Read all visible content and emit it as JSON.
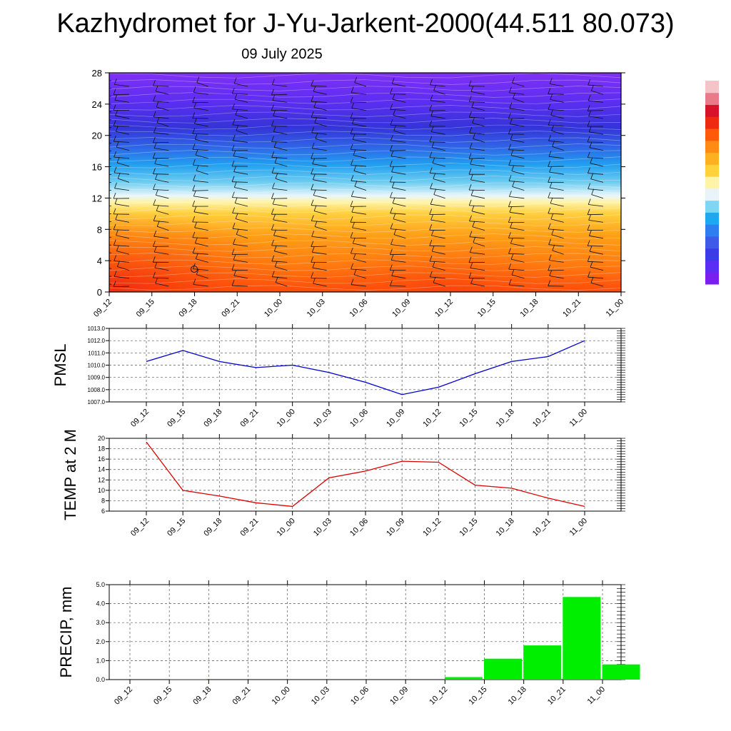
{
  "title": "Kazhydromet for J-Yu-Jarkent-2000(44.511 80.073)",
  "date": "09 July 2025",
  "time_labels": [
    "09_12",
    "09_15",
    "09_18",
    "09_21",
    "10_00",
    "10_03",
    "10_06",
    "10_09",
    "10_12",
    "10_15",
    "10_18",
    "10_21",
    "11_00"
  ],
  "colors": {
    "pmsl_line": "#0000cc",
    "temp_line": "#dd0000",
    "precip_bar": "#00ee00",
    "grid": "#555555",
    "barb": "#111111"
  },
  "chart_data": [
    {
      "type": "heatmap",
      "description_free": true,
      "y_ticks": [
        "0",
        "4",
        "8",
        "12",
        "16",
        "20",
        "24",
        "28"
      ],
      "ylim": [
        0,
        28
      ],
      "x": [
        "09_12",
        "09_15",
        "09_18",
        "09_21",
        "10_00",
        "10_03",
        "10_06",
        "10_09",
        "10_12",
        "10_15",
        "10_18",
        "10_21",
        "11_00"
      ],
      "colorbar": [
        "#7a1ff0",
        "#5a2ef5",
        "#3a3ce8",
        "#3e5ae6",
        "#2f7ef0",
        "#1ea8f2",
        "#7dd6f2",
        "#e8f4fa",
        "#fff3a8",
        "#ffd23c",
        "#ffb020",
        "#ff8a14",
        "#ff5a0a",
        "#ee2a10",
        "#d8122a",
        "#e87a8a",
        "#f4c4c8"
      ],
      "legend": "right"
    },
    {
      "type": "line",
      "ylabel": "PMSL",
      "x": [
        "09_12",
        "09_15",
        "09_18",
        "09_21",
        "10_00",
        "10_03",
        "10_06",
        "10_09",
        "10_12",
        "10_15",
        "10_18",
        "10_21",
        "11_00"
      ],
      "values": [
        1010.3,
        1011.2,
        1010.3,
        1009.8,
        1010.0,
        1009.4,
        1008.6,
        1007.6,
        1008.2,
        1009.3,
        1010.3,
        1010.7,
        1012.0
      ],
      "ylim": [
        1007.0,
        1013.0
      ],
      "y_ticks": [
        "1007.0",
        "1008.0",
        "1009.0",
        "1010.0",
        "1011.0",
        "1012.0",
        "1013.0"
      ],
      "grid": true
    },
    {
      "type": "line",
      "ylabel": "TEMP at 2 M",
      "x": [
        "09_12",
        "09_15",
        "09_18",
        "09_21",
        "10_00",
        "10_03",
        "10_06",
        "10_09",
        "10_12",
        "10_15",
        "10_18",
        "10_21",
        "11_00"
      ],
      "values": [
        19.3,
        10.0,
        8.9,
        7.6,
        6.9,
        12.4,
        13.7,
        15.6,
        15.4,
        11.0,
        10.4,
        8.5,
        6.9
      ],
      "ylim": [
        6,
        20
      ],
      "y_ticks": [
        "6",
        "8",
        "10",
        "12",
        "14",
        "16",
        "18",
        "20"
      ],
      "grid": true
    },
    {
      "type": "bar",
      "ylabel": "PRECIP, mm",
      "categories": [
        "09_12",
        "09_15",
        "09_18",
        "09_21",
        "10_00",
        "10_03",
        "10_06",
        "10_09",
        "10_12",
        "10_15",
        "10_18",
        "10_21",
        "11_00"
      ],
      "values": [
        0.0,
        0.03,
        0.0,
        0.0,
        0.0,
        0.0,
        0.0,
        0.0,
        0.13,
        1.1,
        1.8,
        4.35,
        0.8
      ],
      "ylim": [
        0.0,
        5.0
      ],
      "y_ticks": [
        "0.0",
        "1.0",
        "2.0",
        "3.0",
        "4.0",
        "5.0"
      ],
      "grid": true
    }
  ]
}
